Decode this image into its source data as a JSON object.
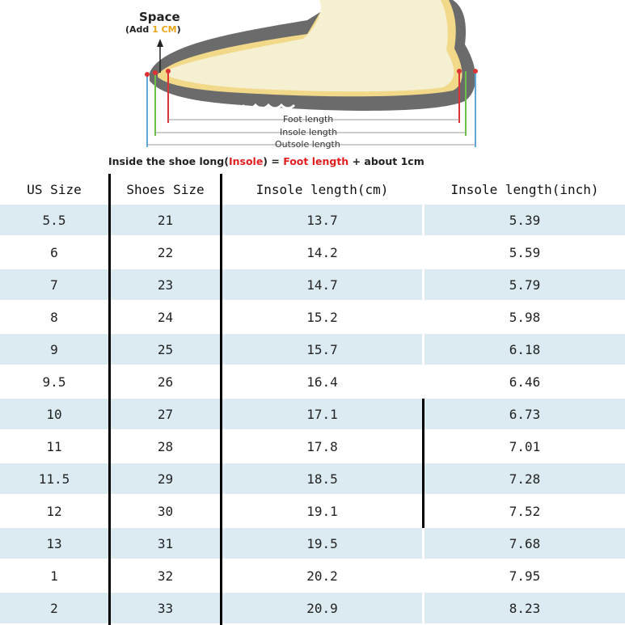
{
  "diagram": {
    "space_label": "Space",
    "space_note_prefix": "(Add ",
    "space_note_accent": "1 CM",
    "space_note_suffix": ")",
    "foot_length": "Foot length",
    "insole_length": "Insole length",
    "outsole_length": "Outsole length",
    "formula": {
      "part1": "Inside the shoe long(",
      "insole": "Insole",
      "part2": ") = ",
      "foot_length": "Foot length",
      "part3": " + about 1cm"
    }
  },
  "table": {
    "headers": [
      "US Size",
      "Shoes Size",
      "Insole length(cm)",
      "Insole length(inch)"
    ],
    "rows": [
      [
        "5.5",
        "21",
        "13.7",
        "5.39"
      ],
      [
        "6",
        "22",
        "14.2",
        "5.59"
      ],
      [
        "7",
        "23",
        "14.7",
        "5.79"
      ],
      [
        "8",
        "24",
        "15.2",
        "5.98"
      ],
      [
        "9",
        "25",
        "15.7",
        "6.18"
      ],
      [
        "9.5",
        "26",
        "16.4",
        "6.46"
      ],
      [
        "10",
        "27",
        "17.1",
        "6.73"
      ],
      [
        "11",
        "28",
        "17.8",
        "7.01"
      ],
      [
        "11.5",
        "29",
        "18.5",
        "7.28"
      ],
      [
        "12",
        "30",
        "19.1",
        "7.52"
      ],
      [
        "13",
        "31",
        "19.5",
        "7.68"
      ],
      [
        "1",
        "32",
        "20.2",
        "7.95"
      ],
      [
        "2",
        "33",
        "20.9",
        "8.23"
      ]
    ]
  },
  "colors": {
    "row_shade": "#dcebf2",
    "accent_orange": "#e8a51a",
    "accent_red": "#e02020"
  }
}
